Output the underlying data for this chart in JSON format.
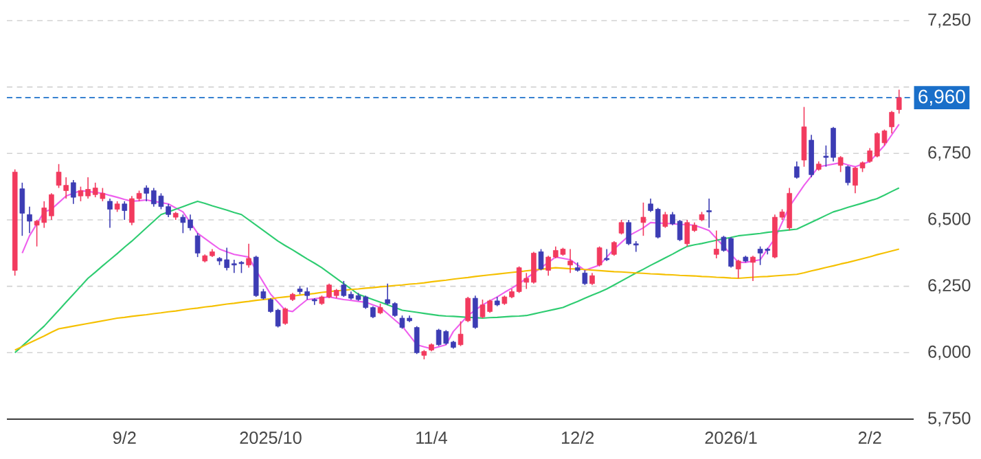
{
  "chart_data": {
    "type": "candlestick",
    "categories": [
      null,
      null,
      null,
      null,
      null,
      null,
      null,
      null,
      null,
      null,
      null,
      null,
      null,
      null,
      null,
      "9/2",
      null,
      null,
      null,
      null,
      null,
      null,
      null,
      null,
      null,
      null,
      null,
      null,
      null,
      null,
      null,
      null,
      null,
      null,
      null,
      "2025/10",
      null,
      null,
      null,
      null,
      null,
      null,
      null,
      null,
      null,
      null,
      null,
      null,
      null,
      null,
      null,
      null,
      null,
      null,
      null,
      null,
      null,
      "11/4",
      null,
      null,
      null,
      null,
      null,
      null,
      null,
      null,
      null,
      null,
      null,
      null,
      null,
      null,
      null,
      null,
      null,
      null,
      null,
      "12/2",
      null,
      null,
      null,
      null,
      null,
      null,
      null,
      null,
      null,
      null,
      null,
      null,
      null,
      null,
      null,
      null,
      null,
      null,
      null,
      null,
      "2026/1",
      null,
      null,
      null,
      null,
      null,
      null,
      null,
      null,
      null,
      null,
      null,
      null,
      null,
      null,
      null,
      null,
      null,
      null,
      "2/2",
      null,
      null,
      null,
      null
    ],
    "ohlc": [
      [
        6310,
        6690,
        6290,
        6680
      ],
      [
        6617,
        6640,
        6440,
        6525
      ],
      [
        6520,
        6550,
        6450,
        6495
      ],
      [
        6480,
        6500,
        6400,
        6495
      ],
      [
        6490,
        6570,
        6470,
        6545
      ],
      [
        6515,
        6600,
        6500,
        6595
      ],
      [
        6630,
        6710,
        6620,
        6680
      ],
      [
        6610,
        6660,
        6580,
        6630
      ],
      [
        6640,
        6650,
        6560,
        6585
      ],
      [
        6590,
        6625,
        6570,
        6610
      ],
      [
        6590,
        6660,
        6580,
        6615
      ],
      [
        6595,
        6640,
        6585,
        6620
      ],
      [
        6580,
        6620,
        6570,
        6600
      ],
      [
        6570,
        6580,
        6470,
        6540
      ],
      [
        6540,
        6570,
        6530,
        6560
      ],
      [
        6560,
        6570,
        6500,
        6535
      ],
      [
        6490,
        6590,
        6480,
        6580
      ],
      [
        6580,
        6610,
        6570,
        6600
      ],
      [
        6620,
        6630,
        6570,
        6600
      ],
      [
        6610,
        6620,
        6550,
        6560
      ],
      [
        6590,
        6600,
        6540,
        6550
      ],
      [
        6550,
        6560,
        6510,
        6520
      ],
      [
        6510,
        6530,
        6500,
        6525
      ],
      [
        6510,
        6520,
        6450,
        6490
      ],
      [
        6500,
        6520,
        6460,
        6470
      ],
      [
        6440,
        6450,
        6360,
        6375
      ],
      [
        6345,
        6370,
        6340,
        6365
      ],
      [
        6365,
        6390,
        6360,
        6380
      ],
      [
        6355,
        6360,
        6330,
        6345
      ],
      [
        6350,
        6395,
        6310,
        6320
      ],
      [
        6335,
        6350,
        6300,
        6330
      ],
      [
        6340,
        6345,
        6300,
        6335
      ],
      [
        6330,
        6410,
        6320,
        6355
      ],
      [
        6360,
        6365,
        6210,
        6215
      ],
      [
        6230,
        6240,
        6200,
        6205
      ],
      [
        6200,
        6205,
        6150,
        6155
      ],
      [
        6160,
        6165,
        6095,
        6100
      ],
      [
        6110,
        6170,
        6105,
        6165
      ],
      [
        6200,
        6225,
        6195,
        6220
      ],
      [
        6240,
        6250,
        6220,
        6230
      ],
      [
        6230,
        6245,
        6200,
        6215
      ],
      [
        6200,
        6205,
        6180,
        6195
      ],
      [
        6185,
        6215,
        6180,
        6210
      ],
      [
        6210,
        6260,
        6205,
        6255
      ],
      [
        6215,
        6240,
        6205,
        6235
      ],
      [
        6255,
        6270,
        6210,
        6215
      ],
      [
        6220,
        6230,
        6200,
        6205
      ],
      [
        6215,
        6225,
        6195,
        6200
      ],
      [
        6210,
        6215,
        6165,
        6170
      ],
      [
        6170,
        6175,
        6130,
        6135
      ],
      [
        6150,
        6185,
        6145,
        6170
      ],
      [
        6200,
        6260,
        6180,
        6185
      ],
      [
        6185,
        6190,
        6135,
        6140
      ],
      [
        6130,
        6140,
        6090,
        6095
      ],
      [
        6130,
        6140,
        6115,
        6120
      ],
      [
        6095,
        6100,
        5995,
        6000
      ],
      [
        5990,
        6010,
        5975,
        6005
      ],
      [
        6010,
        6035,
        6005,
        6030
      ],
      [
        6085,
        6090,
        6025,
        6030
      ],
      [
        6080,
        6085,
        6030,
        6035
      ],
      [
        6040,
        6045,
        6015,
        6020
      ],
      [
        6030,
        6118,
        6025,
        6070
      ],
      [
        6120,
        6210,
        6115,
        6205
      ],
      [
        6205,
        6215,
        6090,
        6095
      ],
      [
        6135,
        6200,
        6130,
        6180
      ],
      [
        6155,
        6200,
        6150,
        6195
      ],
      [
        6195,
        6210,
        6175,
        6180
      ],
      [
        6185,
        6215,
        6180,
        6210
      ],
      [
        6210,
        6240,
        6205,
        6230
      ],
      [
        6230,
        6325,
        6225,
        6320
      ],
      [
        6265,
        6300,
        6240,
        6280
      ],
      [
        6265,
        6380,
        6260,
        6375
      ],
      [
        6380,
        6390,
        6310,
        6315
      ],
      [
        6310,
        6365,
        6290,
        6360
      ],
      [
        6360,
        6400,
        6355,
        6385
      ],
      [
        6370,
        6395,
        6365,
        6390
      ],
      [
        6330,
        6390,
        6300,
        6345
      ],
      [
        6320,
        6340,
        6305,
        6310
      ],
      [
        6300,
        6310,
        6255,
        6260
      ],
      [
        6260,
        6300,
        6255,
        6290
      ],
      [
        6330,
        6400,
        6325,
        6395
      ],
      [
        6355,
        6390,
        6345,
        6350
      ],
      [
        6370,
        6420,
        6365,
        6415
      ],
      [
        6450,
        6500,
        6445,
        6490
      ],
      [
        6490,
        6500,
        6405,
        6410
      ],
      [
        6410,
        6420,
        6380,
        6405
      ],
      [
        6490,
        6565,
        6440,
        6510
      ],
      [
        6560,
        6580,
        6530,
        6535
      ],
      [
        6540,
        6545,
        6430,
        6435
      ],
      [
        6475,
        6530,
        6470,
        6520
      ],
      [
        6520,
        6530,
        6480,
        6485
      ],
      [
        6495,
        6500,
        6420,
        6425
      ],
      [
        6410,
        6500,
        6400,
        6490
      ],
      [
        6460,
        6490,
        6455,
        6480
      ],
      [
        6500,
        6530,
        6495,
        6520
      ],
      [
        6535,
        6580,
        6470,
        6530
      ],
      [
        6370,
        6460,
        6355,
        6390
      ],
      [
        6435,
        6440,
        6380,
        6385
      ],
      [
        6430,
        6435,
        6320,
        6325
      ],
      [
        6315,
        6350,
        6280,
        6345
      ],
      [
        6360,
        6365,
        6340,
        6345
      ],
      [
        6340,
        6365,
        6270,
        6360
      ],
      [
        6390,
        6400,
        6330,
        6375
      ],
      [
        6390,
        6395,
        6370,
        6385
      ],
      [
        6360,
        6520,
        6355,
        6510
      ],
      [
        6510,
        6540,
        6500,
        6530
      ],
      [
        6470,
        6620,
        6460,
        6600
      ],
      [
        6700,
        6720,
        6655,
        6660
      ],
      [
        6725,
        6925,
        6700,
        6850
      ],
      [
        6800,
        6820,
        6660,
        6670
      ],
      [
        6690,
        6720,
        6685,
        6710
      ],
      [
        6740,
        6780,
        6700,
        6735
      ],
      [
        6845,
        6850,
        6720,
        6735
      ],
      [
        6705,
        6740,
        6680,
        6735
      ],
      [
        6700,
        6705,
        6630,
        6640
      ],
      [
        6630,
        6700,
        6600,
        6695
      ],
      [
        6695,
        6720,
        6680,
        6715
      ],
      [
        6720,
        6770,
        6715,
        6760
      ],
      [
        6740,
        6830,
        6735,
        6825
      ],
      [
        6790,
        6840,
        6780,
        6835
      ],
      [
        6850,
        6910,
        6825,
        6905
      ],
      [
        6915,
        6990,
        6900,
        6960
      ]
    ],
    "colors": [
      "#f23a5e",
      "#3c3cb4",
      "#3c3cb4",
      "#f23a5e",
      "#f23a5e",
      "#f23a5e",
      "#f23a5e",
      "#f23a5e",
      "#3c3cb4",
      "#f23a5e",
      "#f23a5e",
      "#f23a5e",
      "#f23a5e",
      "#3c3cb4",
      "#f23a5e",
      "#3c3cb4",
      "#f23a5e",
      "#f23a5e",
      "#3c3cb4",
      "#3c3cb4",
      "#3c3cb4",
      "#3c3cb4",
      "#f23a5e",
      "#3c3cb4",
      "#3c3cb4",
      "#3c3cb4",
      "#f23a5e",
      "#f23a5e",
      "#3c3cb4",
      "#3c3cb4",
      "#3c3cb4",
      "#3c3cb4",
      "#f23a5e",
      "#3c3cb4",
      "#3c3cb4",
      "#3c3cb4",
      "#3c3cb4",
      "#f23a5e",
      "#f23a5e",
      "#3c3cb4",
      "#3c3cb4",
      "#3c3cb4",
      "#f23a5e",
      "#f23a5e",
      "#f23a5e",
      "#3c3cb4",
      "#3c3cb4",
      "#3c3cb4",
      "#3c3cb4",
      "#3c3cb4",
      "#f23a5e",
      "#3c3cb4",
      "#3c3cb4",
      "#3c3cb4",
      "#3c3cb4",
      "#3c3cb4",
      "#f23a5e",
      "#f23a5e",
      "#3c3cb4",
      "#3c3cb4",
      "#3c3cb4",
      "#f23a5e",
      "#f23a5e",
      "#3c3cb4",
      "#f23a5e",
      "#f23a5e",
      "#3c3cb4",
      "#f23a5e",
      "#f23a5e",
      "#f23a5e",
      "#f23a5e",
      "#f23a5e",
      "#3c3cb4",
      "#f23a5e",
      "#f23a5e",
      "#f23a5e",
      "#f23a5e",
      "#3c3cb4",
      "#3c3cb4",
      "#f23a5e",
      "#f23a5e",
      "#3c3cb4",
      "#f23a5e",
      "#f23a5e",
      "#3c3cb4",
      "#3c3cb4",
      "#f23a5e",
      "#3c3cb4",
      "#3c3cb4",
      "#f23a5e",
      "#3c3cb4",
      "#3c3cb4",
      "#f23a5e",
      "#f23a5e",
      "#f23a5e",
      "#3c3cb4",
      "#f23a5e",
      "#3c3cb4",
      "#3c3cb4",
      "#f23a5e",
      "#3c3cb4",
      "#f23a5e",
      "#3c3cb4",
      "#3c3cb4",
      "#f23a5e",
      "#f23a5e",
      "#f23a5e",
      "#3c3cb4",
      "#f23a5e",
      "#3c3cb4",
      "#f23a5e",
      "#3c3cb4",
      "#3c3cb4",
      "#f23a5e",
      "#3c3cb4",
      "#f23a5e",
      "#f23a5e",
      "#f23a5e",
      "#f23a5e",
      "#f23a5e",
      "#f23a5e",
      "#f23a5e"
    ],
    "series": [
      {
        "type": "line",
        "color": "#ee5fee",
        "values": [
          null,
          6375,
          6440,
          6485,
          6530,
          6540,
          6565,
          6590,
          6600,
          6610,
          6607,
          6603,
          6600,
          6592,
          6585,
          6577,
          6570,
          6572,
          6575,
          6570,
          6565,
          6560,
          6545,
          6530,
          6490,
          6450,
          6430,
          6410,
          6390,
          6380,
          6370,
          6365,
          6360,
          6310,
          6265,
          6220,
          6190,
          6160,
          6155,
          6178,
          6200,
          6203,
          6207,
          6210,
          6205,
          6200,
          6197,
          6193,
          6190,
          6180,
          6170,
          6147,
          6123,
          6100,
          6065,
          6030,
          6022,
          6015,
          6022,
          6030,
          6080,
          6110,
          6140,
          6160,
          6180,
          6195,
          6210,
          6227,
          6243,
          6260,
          6280,
          6300,
          6320,
          6340,
          6360,
          6355,
          6350,
          6330,
          6310,
          6320,
          6330,
          6360,
          6390,
          6415,
          6440,
          6455,
          6470,
          6490,
          6488,
          6487,
          6485,
          6483,
          6482,
          6480,
          6470,
          6460,
          6430,
          6400,
          6370,
          6340,
          6340,
          6345,
          6350,
          6390,
          6430,
          6490,
          6550,
          6590,
          6630,
          6665,
          6700,
          6705,
          6710,
          6715,
          6707,
          6700,
          6710,
          6720,
          6750,
          6780,
          6820,
          6860
        ]
      },
      {
        "type": "line",
        "color": "#2ecc71",
        "values": [
          6000,
          6025,
          6050,
          6075,
          6100,
          6130,
          6160,
          6190,
          6220,
          6250,
          6280,
          6303,
          6327,
          6350,
          6373,
          6397,
          6420,
          6445,
          6470,
          6495,
          6520,
          6530,
          6540,
          6550,
          6560,
          6570,
          6562,
          6553,
          6545,
          6537,
          6528,
          6520,
          6500,
          6480,
          6460,
          6440,
          6420,
          6403,
          6387,
          6370,
          6353,
          6337,
          6320,
          6300,
          6280,
          6260,
          6240,
          6220,
          6210,
          6200,
          6190,
          6180,
          6170,
          6160,
          6156,
          6152,
          6148,
          6144,
          6140,
          6138,
          6137,
          6135,
          6133,
          6132,
          6130,
          6132,
          6133,
          6135,
          6137,
          6138,
          6140,
          6146,
          6152,
          6158,
          6164,
          6170,
          6182,
          6193,
          6205,
          6217,
          6228,
          6240,
          6255,
          6270,
          6285,
          6300,
          6314,
          6329,
          6343,
          6357,
          6371,
          6386,
          6400,
          6406,
          6411,
          6417,
          6423,
          6429,
          6434,
          6440,
          6443,
          6446,
          6449,
          6453,
          6456,
          6459,
          6462,
          6465,
          6478,
          6491,
          6504,
          6517,
          6530,
          6538,
          6547,
          6555,
          6563,
          6572,
          6580,
          6593,
          6607,
          6620
        ]
      },
      {
        "type": "line",
        "color": "#f5c000",
        "values": [
          6010,
          6023,
          6037,
          6050,
          6063,
          6077,
          6090,
          6095,
          6100,
          6105,
          6110,
          6115,
          6120,
          6125,
          6130,
          6133,
          6137,
          6140,
          6143,
          6147,
          6150,
          6154,
          6157,
          6161,
          6165,
          6168,
          6172,
          6175,
          6179,
          6183,
          6186,
          6190,
          6193,
          6197,
          6200,
          6203,
          6207,
          6210,
          6213,
          6217,
          6220,
          6223,
          6227,
          6230,
          6233,
          6235,
          6238,
          6240,
          6243,
          6245,
          6248,
          6250,
          6253,
          6255,
          6258,
          6260,
          6263,
          6267,
          6270,
          6273,
          6277,
          6280,
          6283,
          6287,
          6290,
          6293,
          6296,
          6299,
          6302,
          6305,
          6308,
          6311,
          6314,
          6317,
          6320,
          6318,
          6316,
          6315,
          6313,
          6311,
          6309,
          6307,
          6305,
          6304,
          6302,
          6300,
          6299,
          6297,
          6296,
          6294,
          6293,
          6291,
          6290,
          6289,
          6287,
          6286,
          6284,
          6283,
          6281,
          6280,
          6282,
          6284,
          6286,
          6287,
          6289,
          6291,
          6293,
          6295,
          6301,
          6308,
          6314,
          6321,
          6327,
          6334,
          6340,
          6347,
          6354,
          6361,
          6369,
          6376,
          6383,
          6390
        ]
      }
    ],
    "ylim": [
      5750,
      7250
    ],
    "yticks": [
      {
        "value": 5750,
        "label": "5,750"
      },
      {
        "value": 6000,
        "label": "6,000"
      },
      {
        "value": 6250,
        "label": "6,250"
      },
      {
        "value": 6500,
        "label": "6,500"
      },
      {
        "value": 6750,
        "label": "6,750"
      },
      {
        "value": 7000,
        "label": null
      },
      {
        "value": 7250,
        "label": "7,250"
      }
    ],
    "grid": "y",
    "marker": "none",
    "ref_lines": [
      {
        "axis": "y",
        "value": 6960,
        "label": "6,960",
        "color": "#1a6fc9",
        "line_style": "dashed"
      }
    ]
  }
}
